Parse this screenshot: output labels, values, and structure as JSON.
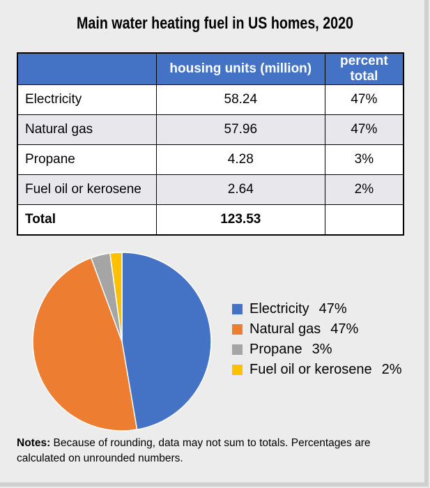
{
  "title": "Main water heating fuel in US homes, 2020",
  "table": {
    "headers": [
      "",
      "housing units (million)",
      "percent total"
    ],
    "rows": [
      {
        "label": "Electricity",
        "units": "58.24",
        "percent": "47%"
      },
      {
        "label": "Natural gas",
        "units": "57.96",
        "percent": "47%"
      },
      {
        "label": "Propane",
        "units": "4.28",
        "percent": "3%"
      },
      {
        "label": "Fuel oil or kerosene",
        "units": "2.64",
        "percent": "2%"
      }
    ],
    "total": {
      "label": "Total",
      "units": "123.53",
      "percent": ""
    },
    "header_color": "#4472c4"
  },
  "chart_data": {
    "type": "pie",
    "categories": [
      "Electricity",
      "Natural gas",
      "Propane",
      "Fuel oil or kerosene"
    ],
    "values": [
      58.24,
      57.96,
      4.28,
      2.64
    ],
    "percent_labels": [
      "47%",
      "47%",
      "3%",
      "2%"
    ],
    "colors": [
      "#4472c4",
      "#ed7d31",
      "#a5a5a5",
      "#ffc000"
    ],
    "legend_position": "right"
  },
  "notes": {
    "label": "Notes:",
    "text": " Because of rounding, data may not sum to totals. Percentages are calculated on unrounded numbers."
  }
}
